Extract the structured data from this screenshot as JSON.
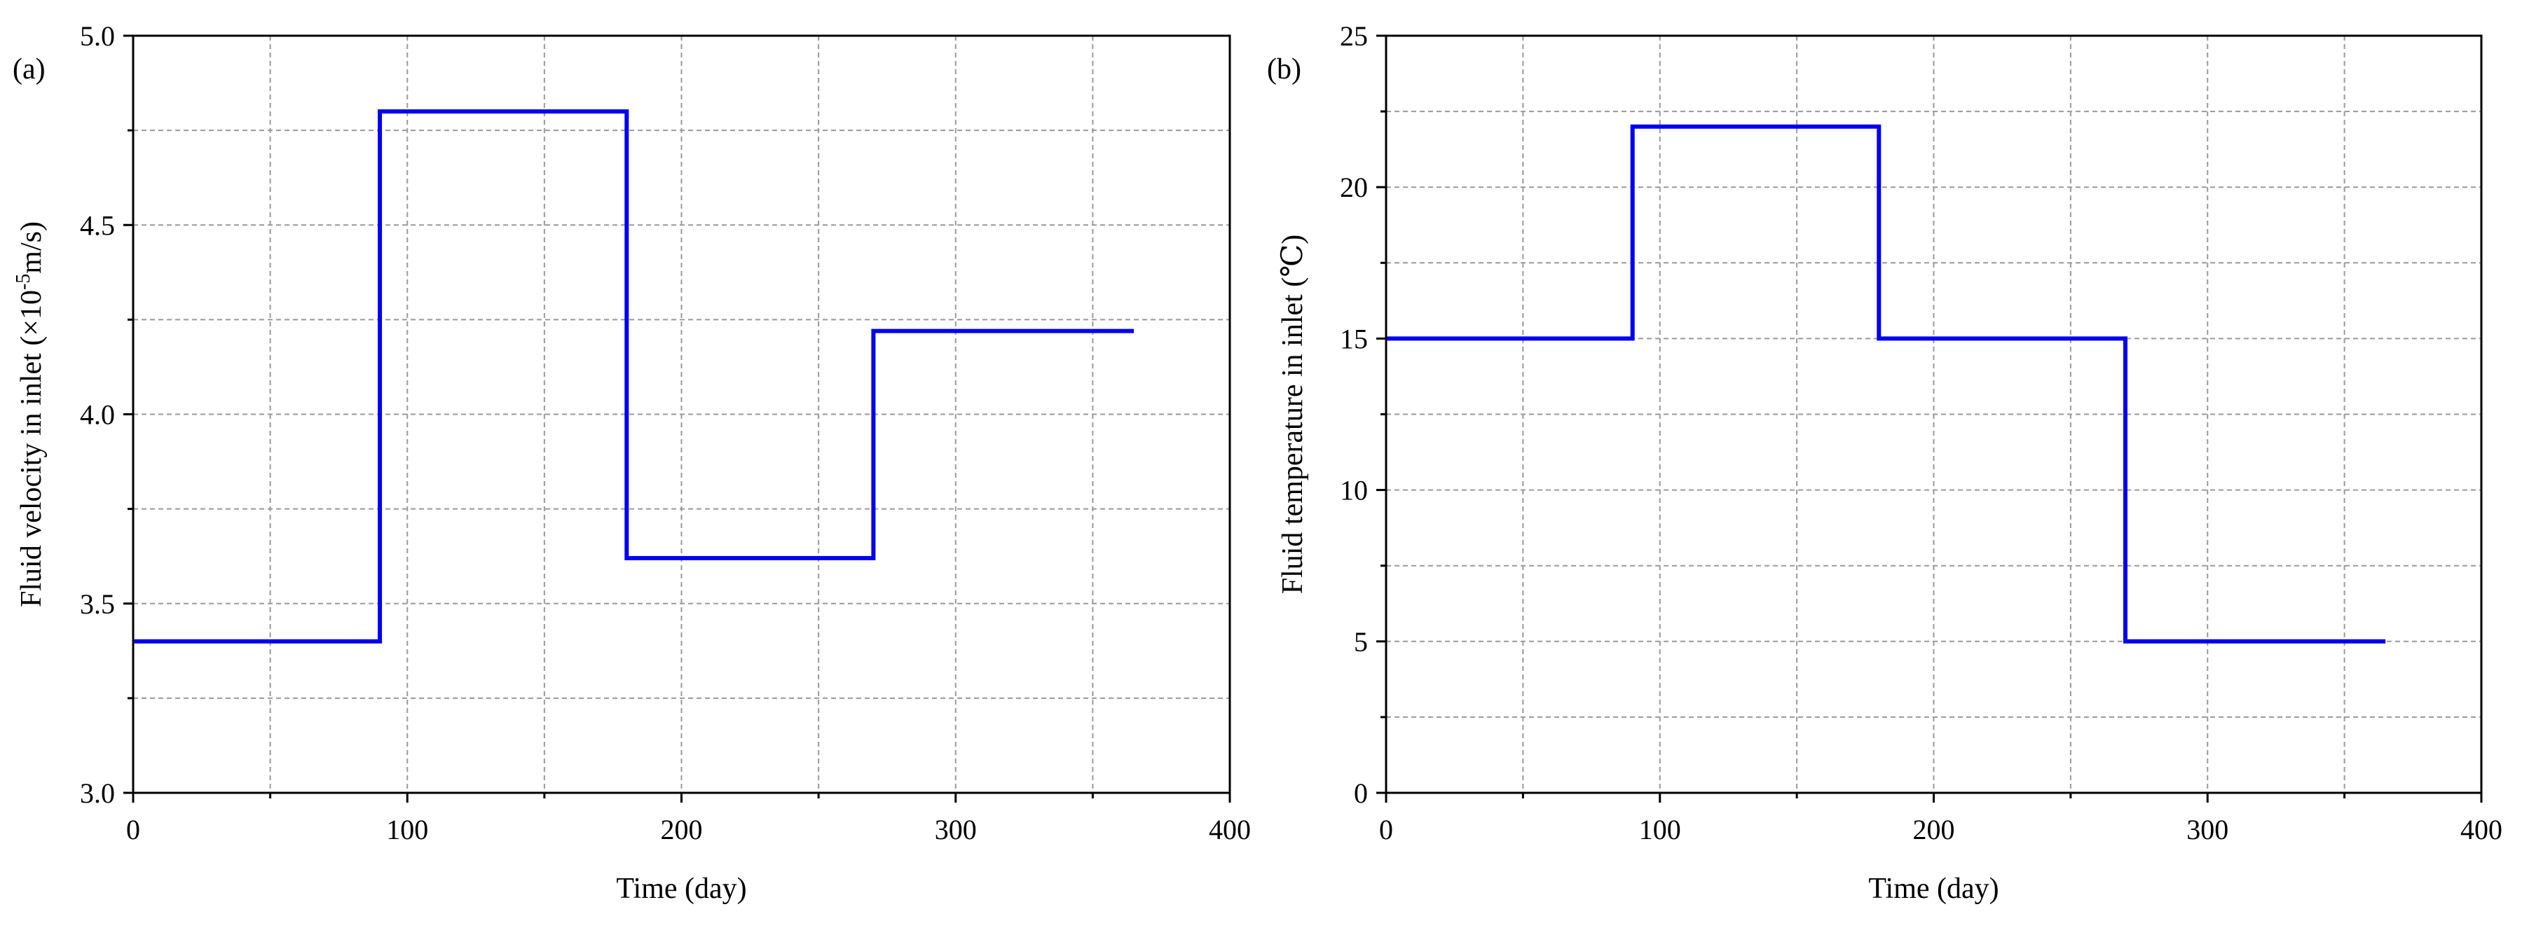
{
  "chart_data": [
    {
      "panel_label": "(a)",
      "type": "line",
      "xlabel": "Time (day)",
      "ylabel_prefix": "Fluid velocity in inlet (×10",
      "ylabel_sup": "-5",
      "ylabel_suffix": "m/s)",
      "xlim": [
        0,
        400
      ],
      "ylim": [
        3.0,
        5.0
      ],
      "xticks": [
        0,
        100,
        200,
        300,
        400
      ],
      "xtick_labels": [
        "0",
        "100",
        "200",
        "300",
        "400"
      ],
      "xminor_ticks": [
        50,
        150,
        250,
        350
      ],
      "yticks": [
        3.0,
        3.5,
        4.0,
        4.5,
        5.0
      ],
      "ytick_labels": [
        "3.0",
        "3.5",
        "4.0",
        "4.5",
        "5.0"
      ],
      "yminor_ticks": [
        3.25,
        3.75,
        4.25,
        4.75
      ],
      "grid": true,
      "series": [
        {
          "color": "#0000ee",
          "x": [
            0,
            90,
            90,
            180,
            180,
            270,
            270,
            365
          ],
          "y": [
            3.4,
            3.4,
            4.8,
            4.8,
            3.62,
            3.62,
            4.22,
            4.22
          ]
        }
      ]
    },
    {
      "panel_label": "(b)",
      "type": "line",
      "xlabel": "Time (day)",
      "ylabel_prefix": "Fluid temperature in inlet (℃)",
      "ylabel_sup": "",
      "ylabel_suffix": "",
      "xlim": [
        0,
        400
      ],
      "ylim": [
        0,
        25
      ],
      "xticks": [
        0,
        100,
        200,
        300,
        400
      ],
      "xtick_labels": [
        "0",
        "100",
        "200",
        "300",
        "400"
      ],
      "xminor_ticks": [
        50,
        150,
        250,
        350
      ],
      "yticks": [
        0,
        5,
        10,
        15,
        20,
        25
      ],
      "ytick_labels": [
        "0",
        "5",
        "10",
        "15",
        "20",
        "25"
      ],
      "yminor_ticks": [
        2.5,
        7.5,
        12.5,
        17.5,
        22.5
      ],
      "grid": true,
      "series": [
        {
          "color": "#0000ee",
          "x": [
            0,
            90,
            90,
            180,
            180,
            270,
            270,
            365
          ],
          "y": [
            15,
            15,
            22,
            22,
            15,
            15,
            5,
            5
          ]
        }
      ]
    }
  ]
}
